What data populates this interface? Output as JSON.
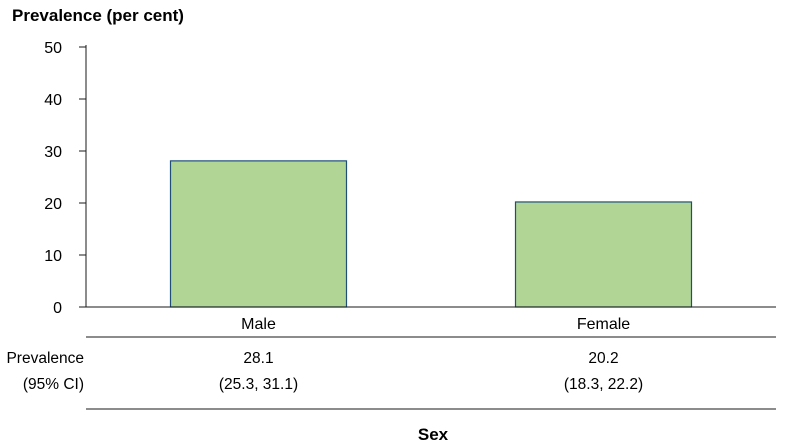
{
  "chart_data": {
    "type": "bar",
    "ylabel": "Prevalence (per cent)",
    "xlabel": "Sex",
    "categories": [
      "Male",
      "Female"
    ],
    "values": [
      28.1,
      20.2
    ],
    "ylim": [
      0,
      50
    ],
    "yticks": [
      "0",
      "10",
      "20",
      "30",
      "40",
      "50"
    ],
    "ytick_values": [
      0,
      10,
      20,
      30,
      40,
      50
    ],
    "bar_color": "#b0d595",
    "bar_border_color": "#1f4e79",
    "grid": false,
    "table": {
      "row_label_1": "Prevalence",
      "row_label_2": "(95% CI)",
      "cells": [
        {
          "value": "28.1",
          "ci": "(25.3, 31.1)"
        },
        {
          "value": "20.2",
          "ci": "(18.3, 22.2)"
        }
      ]
    }
  }
}
